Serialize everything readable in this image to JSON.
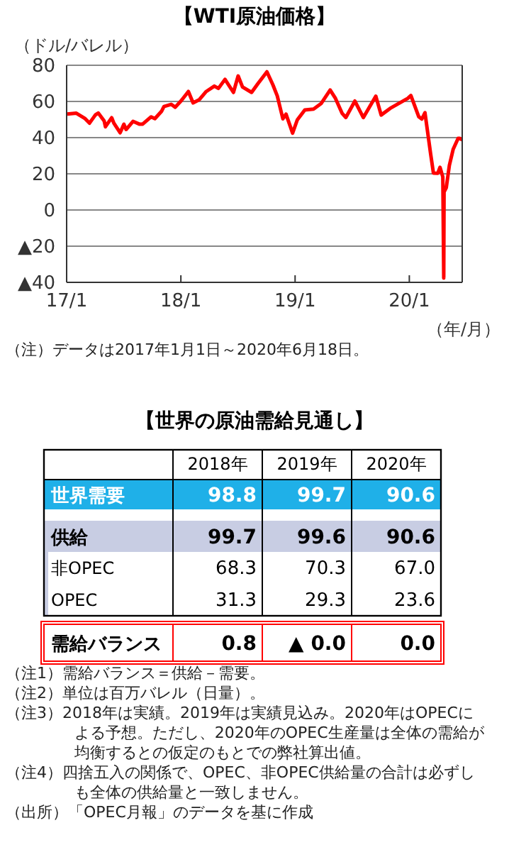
{
  "chart_data": [
    {
      "type": "line",
      "title": "【WTI原油価格】",
      "ylabel": "（ドル/バレル）",
      "xlabel": "（年/月）",
      "x": [
        "2017-01-03",
        "2017-02-01",
        "2017-03-01",
        "2017-03-15",
        "2017-04-03",
        "2017-04-12",
        "2017-05-01",
        "2017-05-05",
        "2017-05-25",
        "2017-06-01",
        "2017-06-21",
        "2017-07-03",
        "2017-07-10",
        "2017-08-01",
        "2017-08-21",
        "2017-09-01",
        "2017-09-28",
        "2017-10-10",
        "2017-10-31",
        "2017-11-08",
        "2017-12-01",
        "2017-12-14",
        "2018-01-02",
        "2018-01-25",
        "2018-02-09",
        "2018-03-01",
        "2018-03-23",
        "2018-04-18",
        "2018-05-01",
        "2018-05-22",
        "2018-06-18",
        "2018-07-03",
        "2018-07-17",
        "2018-08-15",
        "2018-09-04",
        "2018-10-03",
        "2018-10-22",
        "2018-11-05",
        "2018-11-23",
        "2018-12-03",
        "2018-12-24",
        "2019-01-08",
        "2019-02-01",
        "2019-03-01",
        "2019-03-25",
        "2019-04-23",
        "2019-05-10",
        "2019-05-31",
        "2019-06-12",
        "2019-07-11",
        "2019-08-07",
        "2019-09-16",
        "2019-10-03",
        "2019-11-01",
        "2019-12-27",
        "2020-01-06",
        "2020-01-31",
        "2020-02-10",
        "2020-02-20",
        "2020-03-09",
        "2020-03-18",
        "2020-04-01",
        "2020-04-08",
        "2020-04-17",
        "2020-04-20",
        "2020-04-21",
        "2020-04-28",
        "2020-05-08",
        "2020-05-20",
        "2020-06-05",
        "2020-06-10",
        "2020-06-18"
      ],
      "series": [
        {
          "color": "#ff0000",
          "values": [
            53,
            53.5,
            50.5,
            48,
            52.6,
            53.6,
            49.2,
            46,
            51,
            48,
            42.7,
            47.4,
            44.5,
            49,
            47.5,
            47.5,
            51.5,
            50.5,
            54.5,
            57.2,
            58.4,
            56.8,
            60.4,
            65.5,
            59.2,
            61,
            65.5,
            68.5,
            67.2,
            72.2,
            65,
            74.1,
            68,
            65,
            69.8,
            76.4,
            69.2,
            63.1,
            50.4,
            53,
            42.5,
            49.8,
            55.3,
            55.8,
            58.8,
            66.3,
            61.7,
            53.5,
            51.1,
            60.2,
            51.1,
            62.9,
            52.5,
            56.2,
            61.7,
            63.3,
            51.6,
            50.3,
            53.8,
            31.1,
            20.4,
            20.3,
            23.6,
            18.3,
            -37.6,
            10,
            12.3,
            24.7,
            33.5,
            39.6,
            39.6,
            38.8
          ]
        }
      ],
      "xlim": [
        "2017-01-01",
        "2020-06-18"
      ],
      "xticks": [
        {
          "value": "2017-01-01",
          "label": "17/1"
        },
        {
          "value": "2018-01-01",
          "label": "18/1"
        },
        {
          "value": "2019-01-01",
          "label": "19/1"
        },
        {
          "value": "2020-01-01",
          "label": "20/1"
        }
      ],
      "ylim": [
        -40,
        80
      ],
      "yticks": [
        {
          "value": -40,
          "label": "▲40"
        },
        {
          "value": -20,
          "label": "▲20"
        },
        0,
        20,
        40,
        60,
        80
      ],
      "grid": "y",
      "marker": "none",
      "line_style": "solid",
      "annotations": [
        "（注）データは2017年1月1日～2020年6月18日。"
      ]
    },
    {
      "type": "heatmap",
      "title": "【世界の原油需給見通し】",
      "categories": [
        "2018年",
        "2019年",
        "2020年"
      ],
      "y_categories": [
        "世界需要",
        "供給",
        "非OPEC",
        "OPEC",
        "需給バランス"
      ],
      "cells": [
        [
          98.8,
          99.7,
          90.6
        ],
        [
          99.7,
          99.6,
          90.6
        ],
        [
          68.3,
          70.3,
          67.0
        ],
        [
          31.3,
          29.3,
          23.6
        ],
        [
          0.8,
          0,
          0
        ]
      ],
      "cell_labels": [
        [
          "98.8",
          "99.7",
          "90.6"
        ],
        [
          "99.7",
          "99.6",
          "90.6"
        ],
        [
          "68.3",
          "70.3",
          "67.0"
        ],
        [
          "31.3",
          "29.3",
          "23.6"
        ],
        [
          "0.8",
          "▲ 0.0",
          "0.0"
        ]
      ],
      "annotations": [
        "（注1）需給バランス＝供給－需要。",
        "（注2）単位は百万バレル（日量）。",
        "（注3）2018年は実績。2019年は実績見込み。2020年はOPECによる予想。ただし、2020年のOPEC生産量は全体の需給が均衡するとの仮定のもとでの弊社算出値。",
        "（注4）四捨五入の関係で、OPEC、非OPEC供給量の合計は必ずしも全体の供給量と一致しません。",
        "（出所）「OPEC月報」のデータを基に作成"
      ]
    }
  ]
}
